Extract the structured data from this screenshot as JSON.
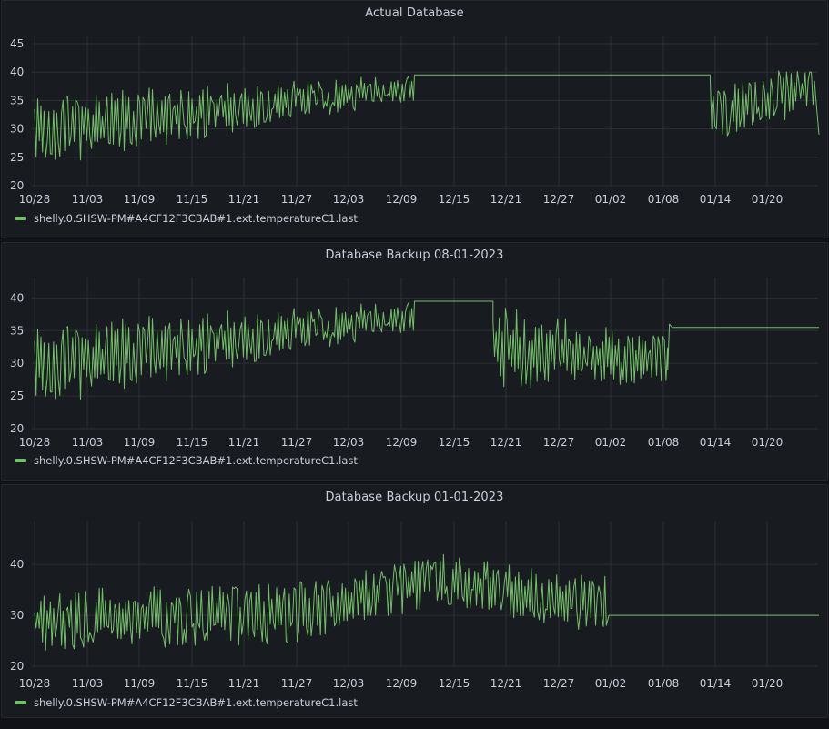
{
  "colors": {
    "series": "#73bf69",
    "grid": "#2c2f35",
    "text": "#ccccdc",
    "panel": "#181b1f",
    "background": "#111217"
  },
  "chart_data": [
    {
      "type": "line",
      "title": "Actual Database",
      "x_tick_labels": [
        "10/28",
        "11/03",
        "11/09",
        "11/15",
        "11/21",
        "11/27",
        "12/03",
        "12/09",
        "12/15",
        "12/21",
        "12/27",
        "01/02",
        "01/08",
        "01/14",
        "01/20"
      ],
      "y_ticks": [
        20,
        25,
        30,
        35,
        40,
        45
      ],
      "ylim": [
        20,
        45
      ],
      "grid": true,
      "legend_position": "bottom-left",
      "series": [
        {
          "name": "shelly.0.SHSW-PM#A4CF12F3CBAB#1.ext.temperatureC1.last",
          "segments": [
            {
              "kind": "noisy",
              "x_start": 0,
              "x_end": 43.5,
              "low_start": 23,
              "low_end": 35,
              "high_start": 36,
              "high_end": 40,
              "seed": 11
            },
            {
              "kind": "line",
              "points": [
                [
                  43.5,
                  39.5
                ],
                [
                  77.4,
                  39.5
                ]
              ]
            },
            {
              "kind": "line",
              "points": [
                [
                  77.4,
                  39.5
                ],
                [
                  77.6,
                  30
                ]
              ]
            },
            {
              "kind": "noisy",
              "x_start": 77.6,
              "x_end": 89.6,
              "low_start": 28,
              "low_end": 33,
              "high_start": 37,
              "high_end": 42,
              "seed": 23
            },
            {
              "kind": "line",
              "points": [
                [
                  89.6,
                  36
                ],
                [
                  90,
                  29
                ]
              ]
            }
          ]
        }
      ]
    },
    {
      "type": "line",
      "title": "Database Backup 08-01-2023",
      "x_tick_labels": [
        "10/28",
        "11/03",
        "11/09",
        "11/15",
        "11/21",
        "11/27",
        "12/03",
        "12/09",
        "12/15",
        "12/21",
        "12/27",
        "01/02",
        "01/08",
        "01/14",
        "01/20"
      ],
      "y_ticks": [
        20,
        25,
        30,
        35,
        40
      ],
      "ylim": [
        20,
        42
      ],
      "grid": true,
      "legend_position": "bottom-left",
      "series": [
        {
          "name": "shelly.0.SHSW-PM#A4CF12F3CBAB#1.ext.temperatureC1.last",
          "segments": [
            {
              "kind": "noisy",
              "x_start": 0,
              "x_end": 43.5,
              "low_start": 23,
              "low_end": 35,
              "high_start": 36,
              "high_end": 40,
              "seed": 11
            },
            {
              "kind": "line",
              "points": [
                [
                  43.5,
                  39.5
                ],
                [
                  52.5,
                  39.5
                ]
              ]
            },
            {
              "kind": "noisy",
              "x_start": 52.5,
              "x_end": 72.5,
              "low_start": 26,
              "low_end": 27,
              "high_start": 39,
              "high_end": 34,
              "seed": 37
            },
            {
              "kind": "line",
              "points": [
                [
                  72.5,
                  29
                ],
                [
                  72.7,
                  36
                ],
                [
                  73,
                  35.5
                ],
                [
                  90,
                  35.5
                ]
              ]
            }
          ]
        }
      ]
    },
    {
      "type": "line",
      "title": "Database Backup 01-01-2023",
      "x_tick_labels": [
        "10/28",
        "11/03",
        "11/09",
        "11/15",
        "11/21",
        "11/27",
        "12/03",
        "12/09",
        "12/15",
        "12/21",
        "12/27",
        "01/02",
        "01/08",
        "01/14",
        "01/20"
      ],
      "y_ticks": [
        20,
        30,
        40
      ],
      "ylim": [
        20,
        47
      ],
      "grid": true,
      "legend_position": "bottom-left",
      "series": [
        {
          "name": "shelly.0.SHSW-PM#A4CF12F3CBAB#1.ext.temperatureC1.last",
          "segments": [
            {
              "kind": "noisy",
              "x_start": 0,
              "x_end": 65.5,
              "low_start": 23,
              "low_end": 26,
              "high_start": 35,
              "high_end": 38,
              "peak_at": 47,
              "peak_boost": 7,
              "seed": 53
            },
            {
              "kind": "line",
              "points": [
                [
                  65.5,
                  28
                ],
                [
                  65.8,
                  30
                ],
                [
                  90,
                  30
                ]
              ]
            }
          ]
        }
      ]
    }
  ]
}
